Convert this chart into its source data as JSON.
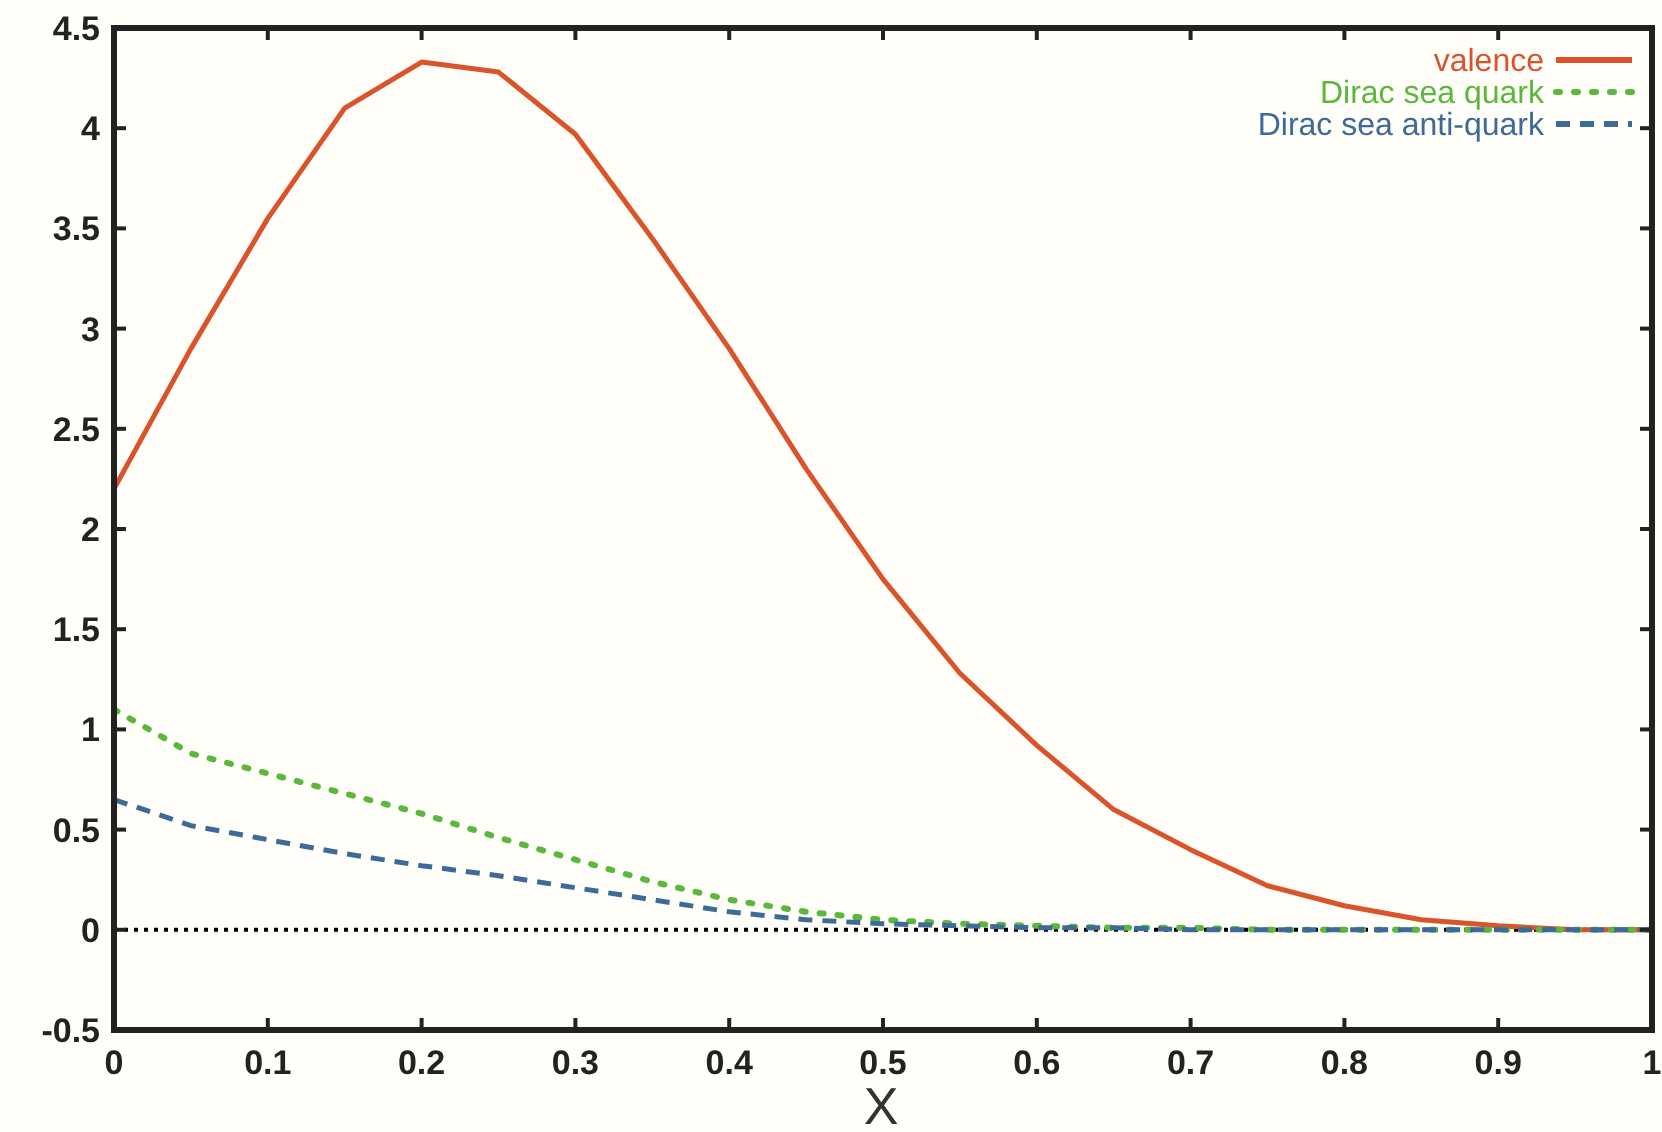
{
  "chart_data": {
    "type": "line",
    "xlabel": "X",
    "xlim": [
      0,
      1
    ],
    "xticks": [
      0,
      0.1,
      0.2,
      0.3,
      0.4,
      0.5,
      0.6,
      0.7,
      0.8,
      0.9,
      1
    ],
    "ylim": [
      -0.5,
      4.5
    ],
    "yticks": [
      -0.5,
      0,
      0.5,
      1,
      1.5,
      2,
      2.5,
      3,
      3.5,
      4,
      4.5
    ],
    "x": [
      0,
      0.05,
      0.1,
      0.15,
      0.2,
      0.25,
      0.3,
      0.35,
      0.4,
      0.45,
      0.5,
      0.55,
      0.6,
      0.65,
      0.7,
      0.75,
      0.8,
      0.85,
      0.9,
      0.95,
      1
    ],
    "legend": "top right",
    "ref_lines": [
      {
        "axis": "y",
        "value": 0,
        "color": "#000000",
        "line_style": "dotted"
      }
    ],
    "series": [
      {
        "name": "valence",
        "color": "#d9532b",
        "line_style": "solid",
        "values": [
          2.2,
          2.9,
          3.55,
          4.1,
          4.33,
          4.28,
          3.97,
          3.45,
          2.9,
          2.3,
          1.75,
          1.28,
          0.92,
          0.6,
          0.4,
          0.22,
          0.12,
          0.05,
          0.02,
          0.0,
          0.0
        ]
      },
      {
        "name": "Dirac sea quark",
        "color": "#5cb83c",
        "line_style": "dotted",
        "values": [
          1.1,
          0.88,
          0.78,
          0.68,
          0.58,
          0.46,
          0.35,
          0.24,
          0.15,
          0.09,
          0.05,
          0.03,
          0.02,
          0.01,
          0.01,
          0.0,
          0.0,
          0.0,
          0.0,
          0.0,
          0.0
        ]
      },
      {
        "name": "Dirac sea anti-quark",
        "color": "#3d6a99",
        "line_style": "dashed",
        "values": [
          0.65,
          0.52,
          0.45,
          0.38,
          0.32,
          0.27,
          0.21,
          0.15,
          0.09,
          0.05,
          0.03,
          0.02,
          0.01,
          0.01,
          0.0,
          0.0,
          0.0,
          0.0,
          0.0,
          0.0,
          0.0
        ]
      }
    ]
  }
}
